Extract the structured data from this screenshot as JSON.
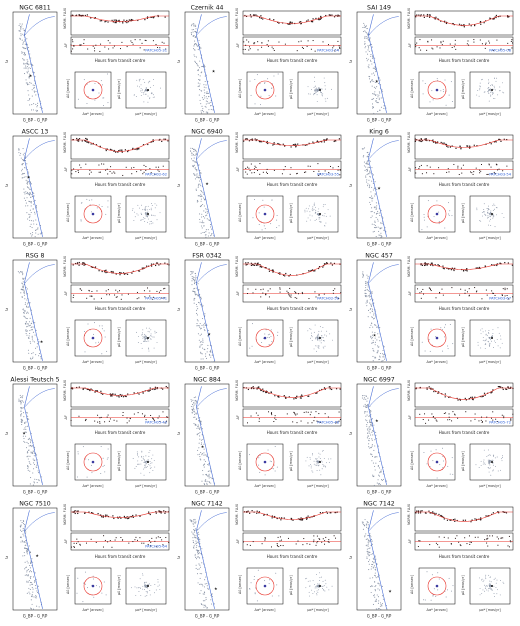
{
  "figure": {
    "ylabels": {
      "cmd_y": "G",
      "cmd_x": "G_BP - G_RP",
      "flux_y": "NORM. FLUX",
      "resid_y": "ΔF",
      "time_x": "Hours from transit centre",
      "sky_y": "Δδ [arcsec]",
      "sky_x": "Δα* [arcsec]",
      "pm_y": "μδ [mas/yr]",
      "pm_x": "μα* [mas/yr]"
    },
    "colors": {
      "isochrone": "#4a6fd6",
      "stars": "#8a94a6",
      "target": "#e8332a",
      "model": "#e8332a",
      "data": "#2a1a1a",
      "patch": "#2b5fd9"
    }
  },
  "chart_data": [
    {
      "type": "scatter",
      "cluster": "NGC 6811",
      "patch_label": "PATCH05-31",
      "target_gcolor": 0.8,
      "target_g": 15.6
    },
    {
      "type": "scatter",
      "cluster": "Czernik 44",
      "patch_label": "PATCH03-54",
      "target_gcolor": 1.3,
      "target_g": 15.2
    },
    {
      "type": "scatter",
      "cluster": "SAI 149",
      "patch_label": "PATCH05-08",
      "target_gcolor": 0.9,
      "target_g": 16.1
    },
    {
      "type": "scatter",
      "cluster": "ASCC 13",
      "patch_label": "PATCH02-62",
      "target_gcolor": 0.7,
      "target_g": 13.6
    },
    {
      "type": "scatter",
      "cluster": "NGC 6940",
      "patch_label": "PATCH03-55",
      "target_gcolor": 1.0,
      "target_g": 14.2
    },
    {
      "type": "scatter",
      "cluster": "King 6",
      "patch_label": "PATCH03-54",
      "target_gcolor": 1.0,
      "target_g": 14.6
    },
    {
      "type": "scatter",
      "cluster": "RSG 8",
      "patch_label": "PATCH05-41",
      "target_gcolor": 1.3,
      "target_g": 17.2
    },
    {
      "type": "scatter",
      "cluster": "FSR 0342",
      "patch_label": "PATCH02-58",
      "target_gcolor": 1.1,
      "target_g": 16.5
    },
    {
      "type": "scatter",
      "cluster": "NGC 457",
      "patch_label": "PATCH03-67",
      "target_gcolor": 0.8,
      "target_g": 16.6
    },
    {
      "type": "scatter",
      "cluster": "Alessi Teutsch 5",
      "patch_label": "PATCH05-40",
      "target_gcolor": 0.5,
      "target_g": 14.3
    },
    {
      "type": "scatter",
      "cluster": "NGC 884",
      "patch_label": "PATCH05-48",
      "target_gcolor": 0.8,
      "target_g": 15.5
    },
    {
      "type": "scatter",
      "cluster": "NGC 6997",
      "patch_label": "PATCH05-72",
      "target_gcolor": 0.9,
      "target_g": 13.2
    },
    {
      "type": "scatter",
      "cluster": "NGC 7510",
      "patch_label": "PATCH05-64",
      "target_gcolor": 1.1,
      "target_g": 14.2
    },
    {
      "type": "scatter",
      "cluster": "NGC 7142",
      "patch_label": "",
      "target_gcolor": 1.4,
      "target_g": 17.1
    },
    {
      "type": "scatter",
      "cluster": "NGC 7142",
      "patch_label": "",
      "target_gcolor": 1.5,
      "target_g": 17.3
    }
  ]
}
